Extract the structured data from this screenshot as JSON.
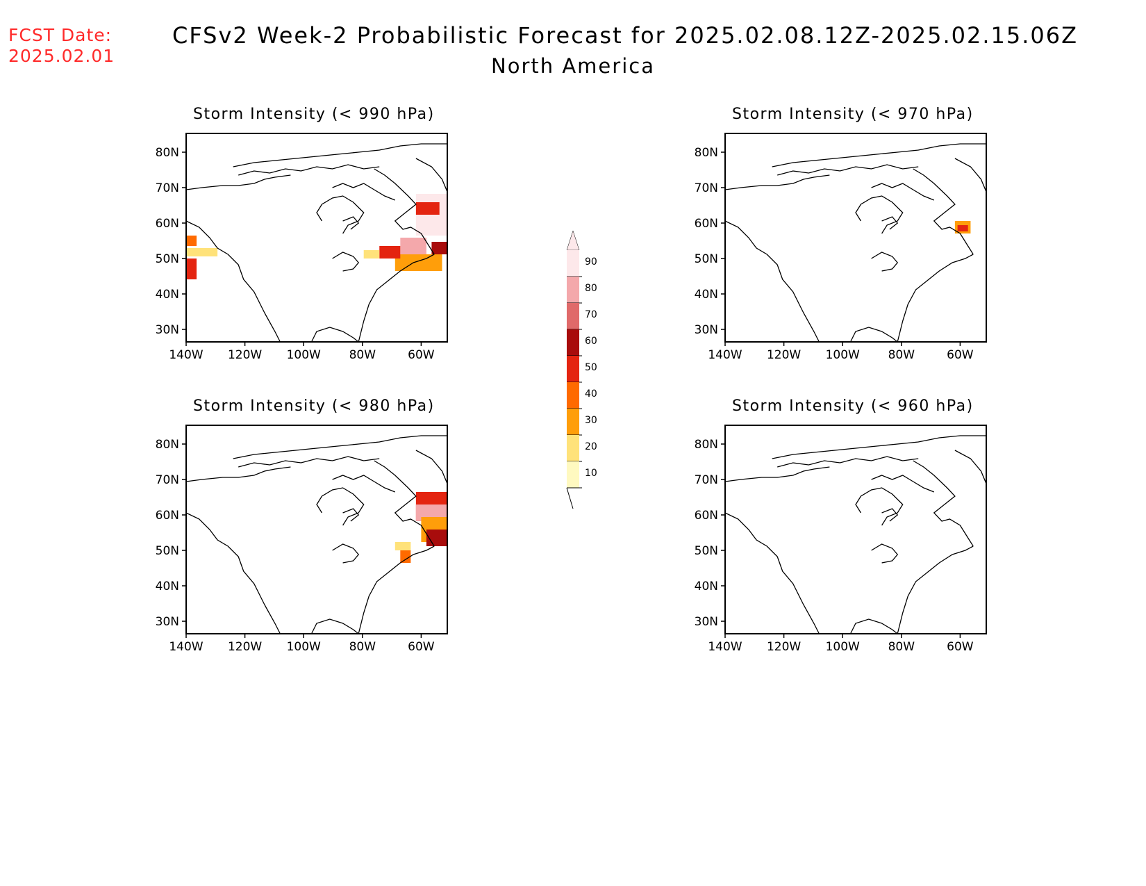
{
  "header": {
    "fcst_label": "FCST Date:",
    "fcst_date": "2025.02.01",
    "title": "CFSv2 Week-2 Probabilistic Forecast for 2025.02.08.12Z-2025.02.15.06Z",
    "subtitle": "North America"
  },
  "panels": [
    {
      "title": "Storm Intensity (< 990 hPa)"
    },
    {
      "title": "Storm Intensity (< 970 hPa)"
    },
    {
      "title": "Storm Intensity (< 980 hPa)"
    },
    {
      "title": "Storm Intensity (< 960 hPa)"
    }
  ],
  "axes": {
    "lon_ticks": [
      "140W",
      "120W",
      "100W",
      "80W",
      "60W"
    ],
    "lat_ticks": [
      "80N",
      "70N",
      "60N",
      "50N",
      "40N",
      "30N"
    ]
  },
  "colorbar": {
    "levels": [
      "90",
      "80",
      "70",
      "60",
      "50",
      "40",
      "30",
      "20",
      "10"
    ],
    "colors": [
      "#fde8ea",
      "#f4a8ab",
      "#e06a6a",
      "#a80c0c",
      "#e42410",
      "#ff6a00",
      "#ff9e0a",
      "#ffe27a",
      "#fff9c0"
    ]
  },
  "colors": {
    "fcst": "#ff2a2a"
  }
}
